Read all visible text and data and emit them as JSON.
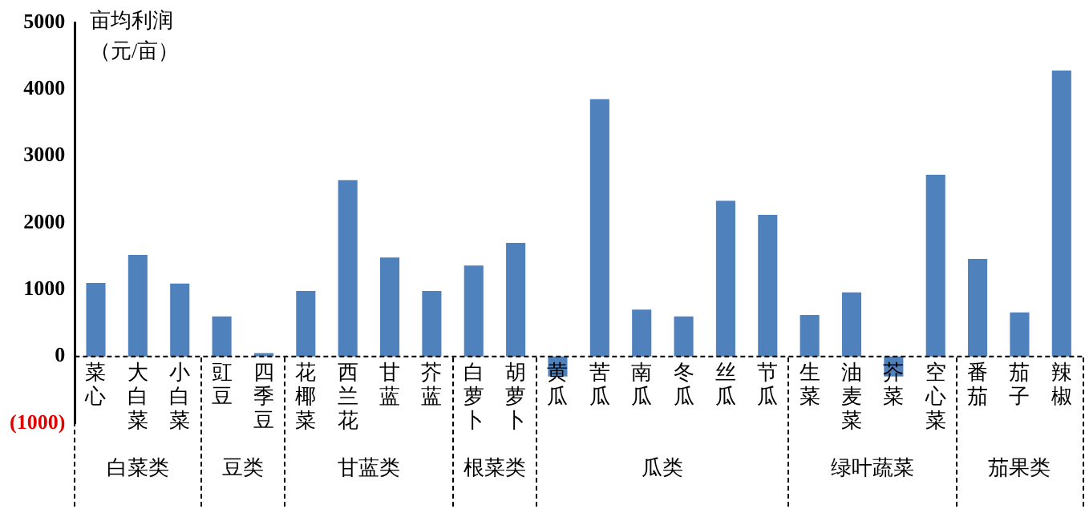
{
  "chart_data": {
    "type": "bar",
    "ylabel": "亩均利润（元/亩）",
    "categories": [
      "菜心",
      "大白菜",
      "小白菜",
      "豇豆",
      "四季豆",
      "花椰菜",
      "西兰花",
      "甘蓝",
      "芥蓝",
      "白萝卜",
      "胡萝卜",
      "黄瓜",
      "苦瓜",
      "南瓜",
      "冬瓜",
      "丝瓜",
      "节瓜",
      "生菜",
      "油麦菜",
      "芥菜",
      "空心菜",
      "番茄",
      "茄子",
      "辣椒"
    ],
    "values": [
      1100,
      1520,
      1090,
      600,
      50,
      980,
      2640,
      1480,
      980,
      1360,
      1700,
      -300,
      3850,
      700,
      600,
      2330,
      2120,
      620,
      960,
      -300,
      2720,
      1460,
      660,
      4280
    ],
    "color": "#4f81bd",
    "ylim": [
      -1000,
      5000
    ],
    "yticks": [
      {
        "value": -1000,
        "label": "(1000)"
      },
      0,
      1000,
      2000,
      3000,
      4000,
      5000
    ],
    "grid": false,
    "legend": false,
    "ref_lines": [
      {
        "axis": "y",
        "value": 0,
        "color": "#000000",
        "line_style": "dashed"
      }
    ],
    "annotations": [
      "白菜类",
      "豆类",
      "甘蓝类",
      "根菜类",
      "瓜类",
      "绿叶蔬菜",
      "茄果类"
    ]
  }
}
